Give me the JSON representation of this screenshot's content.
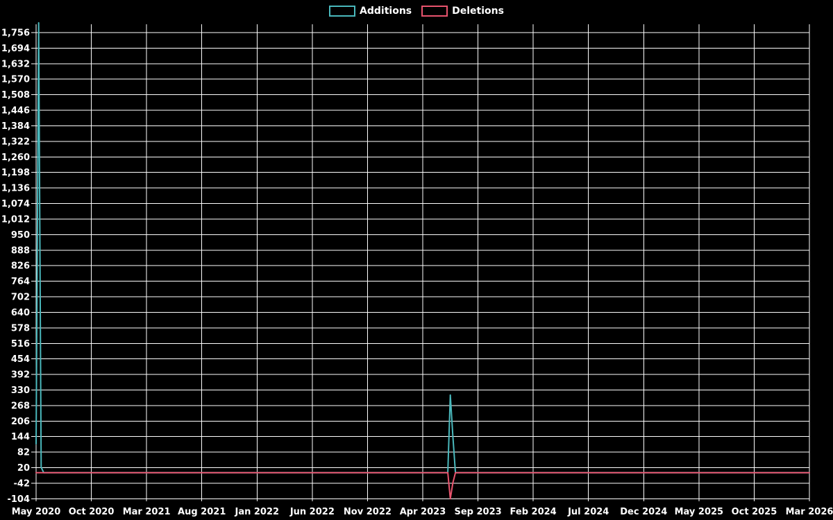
{
  "legend": {
    "items": [
      {
        "label": "Additions",
        "color": "#4ab9bd"
      },
      {
        "label": "Deletions",
        "color": "#e9546e"
      }
    ]
  },
  "chart_data": {
    "type": "line",
    "title": "",
    "legend_position": "top-center",
    "grid": true,
    "colors": {
      "background": "#000000",
      "grid": "#ffffff",
      "text": "#ffffff",
      "additions": "#4ab9bd",
      "deletions": "#e9546e"
    },
    "x_axis": {
      "type": "time",
      "start": "2020-05-01",
      "end": "2026-03-01",
      "tick_labels": [
        "May 2020",
        "Oct 2020",
        "Mar 2021",
        "Aug 2021",
        "Jan 2022",
        "Jun 2022",
        "Nov 2022",
        "Apr 2023",
        "Sep 2023",
        "Feb 2024",
        "Jul 2024",
        "Dec 2024",
        "May 2025",
        "Oct 2025",
        "Mar 2026"
      ]
    },
    "y_axis": {
      "min": -104,
      "max": 1756,
      "step": 62,
      "tick_values": [
        1756,
        1694,
        1632,
        1570,
        1508,
        1446,
        1384,
        1322,
        1260,
        1198,
        1136,
        1074,
        1012,
        950,
        888,
        826,
        764,
        702,
        640,
        578,
        516,
        454,
        392,
        330,
        268,
        206,
        144,
        82,
        20,
        -42,
        -104
      ]
    },
    "series": [
      {
        "name": "Additions",
        "color": "#4ab9bd",
        "points": [
          [
            "2020-05-01",
            115
          ],
          [
            "2020-05-08",
            1795
          ],
          [
            "2020-05-15",
            22
          ],
          [
            "2020-05-22",
            0
          ],
          [
            "2023-06-09",
            0
          ],
          [
            "2023-06-16",
            310
          ],
          [
            "2023-06-23",
            145
          ],
          [
            "2023-06-30",
            0
          ],
          [
            "2026-03-01",
            0
          ]
        ]
      },
      {
        "name": "Deletions",
        "color": "#e9546e",
        "points": [
          [
            "2020-05-01",
            0
          ],
          [
            "2023-06-09",
            0
          ],
          [
            "2023-06-16",
            -104
          ],
          [
            "2023-06-23",
            -40
          ],
          [
            "2023-06-30",
            0
          ],
          [
            "2026-03-01",
            0
          ]
        ]
      }
    ]
  }
}
